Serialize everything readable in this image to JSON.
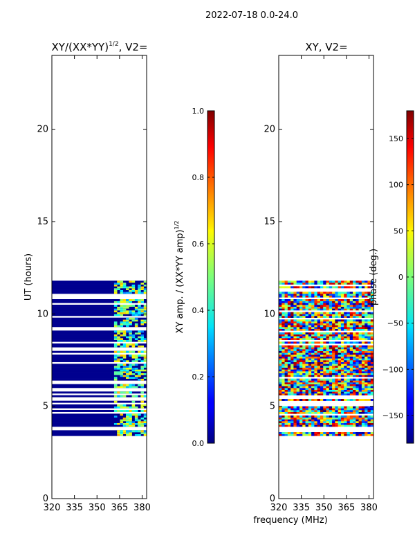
{
  "figure": {
    "suptitle": "2022-07-18 0.0-24.0",
    "shared_xlabel": "frequency (MHz)"
  },
  "chart_data": [
    {
      "type": "heatmap",
      "title_main": "XY/(XX*YY)",
      "title_sup": "1/2",
      "title_suffix": ", V2=",
      "ylabel": "UT (hours)",
      "xlim": [
        320,
        383
      ],
      "ylim": [
        0,
        24
      ],
      "xticks": [
        "320",
        "335",
        "350",
        "365",
        "380"
      ],
      "xtick_values": [
        320,
        335,
        350,
        365,
        380
      ],
      "yticks": [
        "0",
        "5",
        "10",
        "15",
        "20"
      ],
      "ytick_values": [
        0,
        5,
        10,
        15,
        20
      ],
      "data_time_range_hours": [
        3.4,
        11.7
      ],
      "background_value": 0.0,
      "active_channel_range_mhz": [
        362,
        383
      ],
      "colorbar": {
        "label_main": "XY amp. / (XX*YY amp)",
        "label_sup": "1/2",
        "range": [
          0.0,
          1.0
        ],
        "ticks": [
          "0.0",
          "0.2",
          "0.4",
          "0.6",
          "0.8",
          "1.0"
        ],
        "tick_values": [
          0.0,
          0.2,
          0.4,
          0.6,
          0.8,
          1.0
        ]
      }
    },
    {
      "type": "heatmap",
      "title": "XY, V2=",
      "xlim": [
        320,
        383
      ],
      "ylim": [
        0,
        24
      ],
      "xticks": [
        "320",
        "335",
        "350",
        "365",
        "380"
      ],
      "xtick_values": [
        320,
        335,
        350,
        365,
        380
      ],
      "yticks": [
        "0",
        "5",
        "10",
        "15",
        "20"
      ],
      "ytick_values": [
        0,
        5,
        10,
        15,
        20
      ],
      "data_time_range_hours": [
        3.4,
        11.7
      ],
      "colorbar": {
        "label": "phase (deg.)",
        "range": [
          -180,
          180
        ],
        "ticks": [
          "−150",
          "−100",
          "−50",
          "0",
          "50",
          "100",
          "150"
        ],
        "tick_values": [
          -150,
          -100,
          -50,
          0,
          50,
          100,
          150
        ]
      }
    }
  ],
  "colors": {
    "axis": "#000000",
    "background": "#ffffff",
    "jet_dark_blue": "#00008f"
  }
}
